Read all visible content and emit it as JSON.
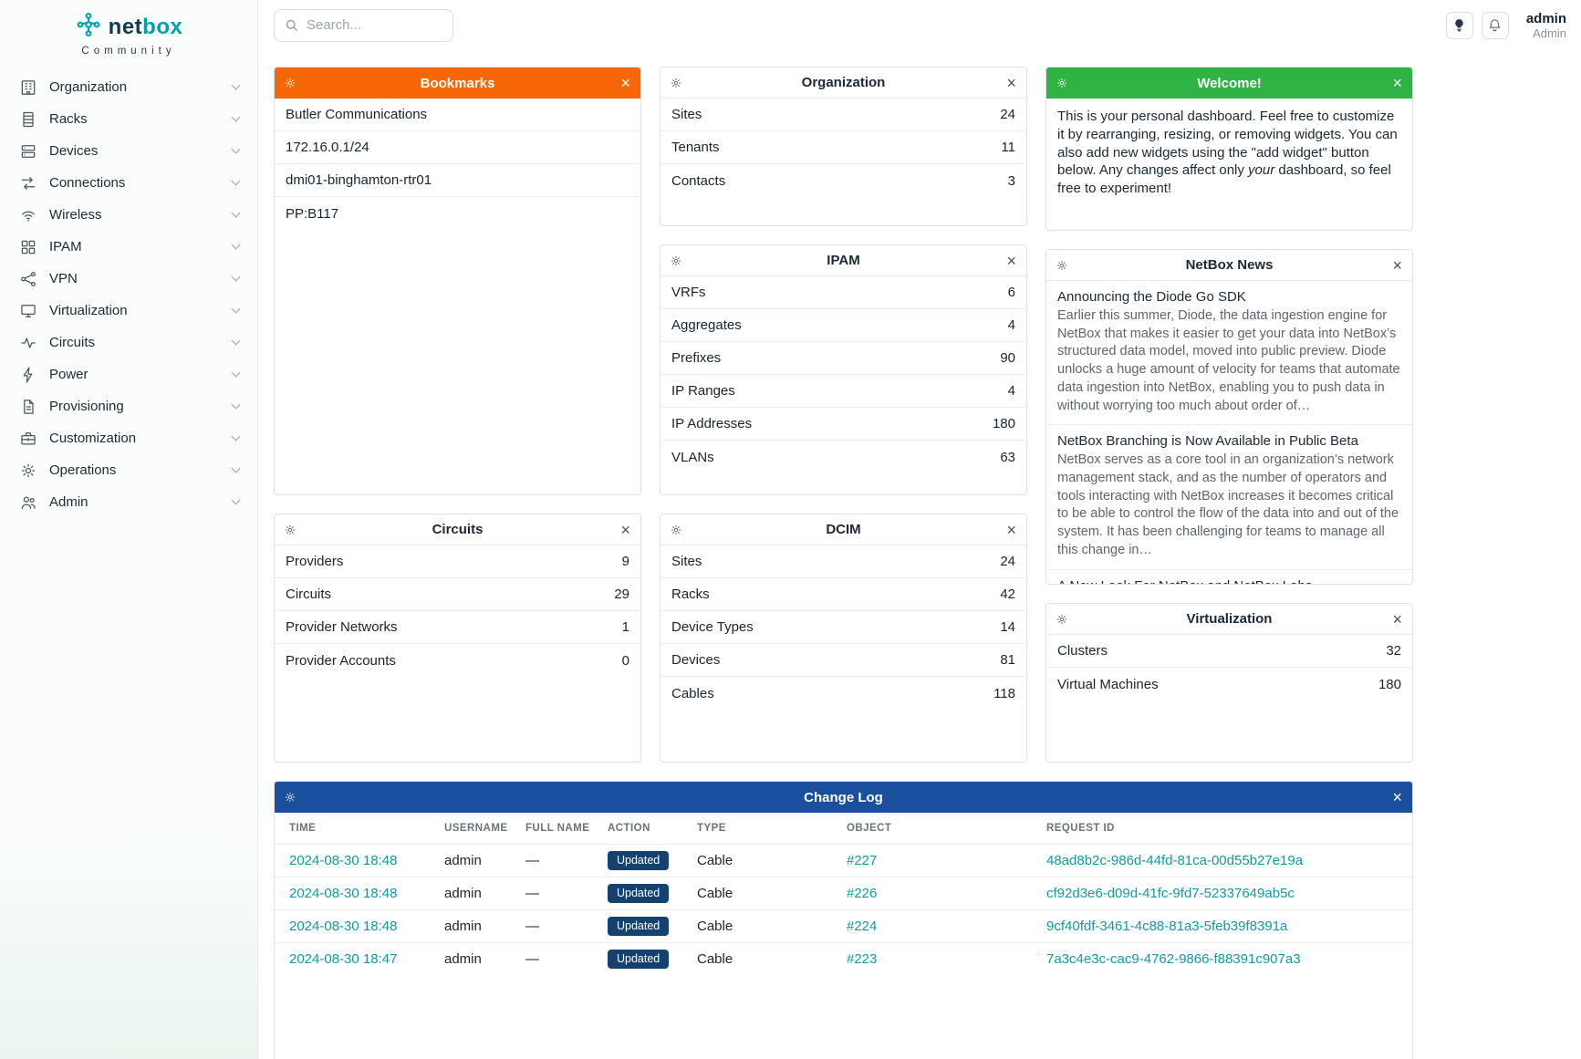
{
  "brand": {
    "logo_net": "net",
    "logo_box": "box",
    "tagline": "Community"
  },
  "topbar": {
    "search_placeholder": "Search...",
    "user_name": "admin",
    "user_role": "Admin"
  },
  "sidebar": {
    "items": [
      {
        "label": "Organization",
        "icon": "building-icon"
      },
      {
        "label": "Racks",
        "icon": "rack-icon"
      },
      {
        "label": "Devices",
        "icon": "devices-icon"
      },
      {
        "label": "Connections",
        "icon": "connections-icon"
      },
      {
        "label": "Wireless",
        "icon": "wireless-icon"
      },
      {
        "label": "IPAM",
        "icon": "ipam-icon"
      },
      {
        "label": "VPN",
        "icon": "vpn-icon"
      },
      {
        "label": "Virtualization",
        "icon": "virtualization-icon"
      },
      {
        "label": "Circuits",
        "icon": "circuits-icon"
      },
      {
        "label": "Power",
        "icon": "power-icon"
      },
      {
        "label": "Provisioning",
        "icon": "provisioning-icon"
      },
      {
        "label": "Customization",
        "icon": "customization-icon"
      },
      {
        "label": "Operations",
        "icon": "operations-icon"
      },
      {
        "label": "Admin",
        "icon": "admin-icon"
      }
    ]
  },
  "widgets": {
    "bookmarks": {
      "title": "Bookmarks",
      "items": [
        "Butler Communications",
        "172.16.0.1/24",
        "dmi01-binghamton-rtr01",
        "PP:B117"
      ]
    },
    "organization": {
      "title": "Organization",
      "rows": [
        {
          "label": "Sites",
          "value": "24"
        },
        {
          "label": "Tenants",
          "value": "11"
        },
        {
          "label": "Contacts",
          "value": "3"
        }
      ]
    },
    "welcome": {
      "title": "Welcome!",
      "body_parts": [
        "This is your personal dashboard. Feel free to customize it by rearranging, resizing, or removing widgets. You can also add new widgets using the \"add widget\" button below. Any changes affect only ",
        "your",
        " dashboard, so feel free to experiment!"
      ]
    },
    "ipam": {
      "title": "IPAM",
      "rows": [
        {
          "label": "VRFs",
          "value": "6"
        },
        {
          "label": "Aggregates",
          "value": "4"
        },
        {
          "label": "Prefixes",
          "value": "90"
        },
        {
          "label": "IP Ranges",
          "value": "4"
        },
        {
          "label": "IP Addresses",
          "value": "180"
        },
        {
          "label": "VLANs",
          "value": "63"
        }
      ]
    },
    "news": {
      "title": "NetBox News",
      "articles": [
        {
          "title": "Announcing the Diode Go SDK",
          "body": "Earlier this summer, Diode, the data ingestion engine for NetBox that makes it easier to get your data into NetBox’s structured data model, moved into public preview. Diode unlocks a huge amount of velocity for teams that automate data ingestion into NetBox, enabling you to push data in without worrying too much about order of…"
        },
        {
          "title": "NetBox Branching is Now Available in Public Beta",
          "body": "NetBox serves as a core tool in an organization’s network management stack, and as the number of operators and tools interacting with NetBox increases it becomes critical to be able to control the flow of the data into and out of the system. It has been challenging for teams to manage all this change in…"
        },
        {
          "title": "A New Look For NetBox and NetBox Labs",
          "body": ""
        }
      ]
    },
    "circuits": {
      "title": "Circuits",
      "rows": [
        {
          "label": "Providers",
          "value": "9"
        },
        {
          "label": "Circuits",
          "value": "29"
        },
        {
          "label": "Provider Networks",
          "value": "1"
        },
        {
          "label": "Provider Accounts",
          "value": "0"
        }
      ]
    },
    "dcim": {
      "title": "DCIM",
      "rows": [
        {
          "label": "Sites",
          "value": "24"
        },
        {
          "label": "Racks",
          "value": "42"
        },
        {
          "label": "Device Types",
          "value": "14"
        },
        {
          "label": "Devices",
          "value": "81"
        },
        {
          "label": "Cables",
          "value": "118"
        }
      ]
    },
    "virtualization": {
      "title": "Virtualization",
      "rows": [
        {
          "label": "Clusters",
          "value": "32"
        },
        {
          "label": "Virtual Machines",
          "value": "180"
        }
      ]
    },
    "changelog": {
      "title": "Change Log",
      "columns": [
        "TIME",
        "USERNAME",
        "FULL NAME",
        "ACTION",
        "TYPE",
        "OBJECT",
        "REQUEST ID"
      ],
      "rows": [
        {
          "time": "2024-08-30 18:48",
          "username": "admin",
          "full_name": "—",
          "action": "Updated",
          "type": "Cable",
          "object": "#227",
          "request_id": "48ad8b2c-986d-44fd-81ca-00d55b27e19a"
        },
        {
          "time": "2024-08-30 18:48",
          "username": "admin",
          "full_name": "—",
          "action": "Updated",
          "type": "Cable",
          "object": "#226",
          "request_id": "cf92d3e6-d09d-41fc-9fd7-52337649ab5c"
        },
        {
          "time": "2024-08-30 18:48",
          "username": "admin",
          "full_name": "—",
          "action": "Updated",
          "type": "Cable",
          "object": "#224",
          "request_id": "9cf40fdf-3461-4c88-81a3-5feb39f8391a"
        },
        {
          "time": "2024-08-30 18:47",
          "username": "admin",
          "full_name": "—",
          "action": "Updated",
          "type": "Cable",
          "object": "#223",
          "request_id": "7a3c4e3c-cac9-4762-9866-f88391c907a3"
        }
      ]
    }
  },
  "colors": {
    "bookmarks_header": "#f76707",
    "welcome_header": "#2fb344",
    "changelog_header": "#1a4f9d",
    "link": "#129aa0",
    "badge_updated": "#15416e",
    "brand_teal": "#00a2a8",
    "brand_navy": "#143c50"
  }
}
